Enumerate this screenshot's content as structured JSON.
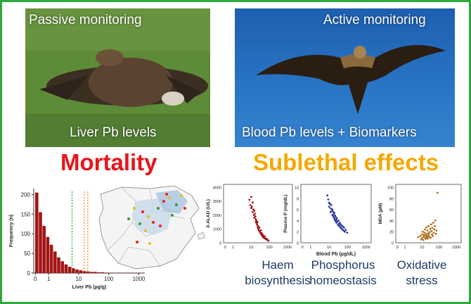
{
  "photos": {
    "passive": {
      "top_caption": "Passive monitoring",
      "bottom_caption": "Liver Pb levels"
    },
    "active": {
      "top_caption": "Active monitoring",
      "bottom_caption": "Blood Pb levels + Biomarkers"
    }
  },
  "headings": {
    "mortality": "Mortality",
    "sublethal": "Sublethal effects"
  },
  "outcomes": [
    {
      "line1": "Haem",
      "line2": "biosynthesis"
    },
    {
      "line1": "Phosphorus",
      "line2": "homeostasis"
    },
    {
      "line1": "Oxidative",
      "line2": "stress"
    }
  ],
  "colors": {
    "frame": "#2eaa3c",
    "mortality": "#e8141b",
    "sublethal": "#f5a800",
    "bars": "#a31515",
    "label_text": "#1f3a66"
  },
  "chart_data": [
    {
      "type": "bar",
      "xlabel": "Liver Pb (µg/g)",
      "ylabel": "Frequency (n)",
      "xscale": "log",
      "xticks": [
        "0",
        "1",
        "10",
        "100",
        "1000"
      ],
      "yticks": [
        "0",
        "50",
        "100",
        "150",
        "200"
      ],
      "ylim": [
        0,
        215
      ],
      "values": [
        205,
        155,
        120,
        92,
        72,
        55,
        40,
        30,
        22,
        16,
        12,
        9,
        7,
        5,
        4,
        3,
        3,
        2,
        2,
        1,
        1,
        1,
        1,
        0,
        1,
        0,
        1,
        0,
        0,
        1
      ],
      "thresholds": [
        {
          "value": 6,
          "color": "#2ca02c"
        },
        {
          "value": 15,
          "color": "#ff7f0e"
        },
        {
          "value": 20,
          "color": "#ff7f0e"
        }
      ]
    },
    {
      "type": "scatter",
      "ylabel": "δ-ALAD (U/L)",
      "xscale": "log",
      "xticks": [
        "0",
        "1",
        "10",
        "100",
        "1000"
      ],
      "yticks": [
        "0",
        "1000",
        "2000",
        "3000",
        "4000"
      ],
      "color": "#a31518",
      "x": [
        8,
        9,
        10,
        10,
        11,
        12,
        12,
        13,
        14,
        15,
        15,
        16,
        17,
        18,
        18,
        19,
        20,
        21,
        22,
        23,
        24,
        25,
        26,
        28,
        30,
        32,
        34,
        36,
        38,
        40,
        42,
        45,
        48,
        52,
        56,
        60,
        65,
        70,
        80,
        90
      ],
      "y": [
        3100,
        2700,
        3300,
        2500,
        2600,
        2900,
        2200,
        2400,
        2000,
        2300,
        1800,
        2100,
        1900,
        1700,
        1500,
        1600,
        1400,
        1300,
        1500,
        1100,
        1200,
        1000,
        900,
        1100,
        800,
        700,
        900,
        600,
        700,
        500,
        600,
        400,
        500,
        350,
        450,
        300,
        250,
        300,
        200,
        150
      ]
    },
    {
      "type": "scatter",
      "ylabel": "Plasma P (mg/dL)",
      "xlabel": "Blood Pb (µg/dL)",
      "xscale": "log",
      "xticks": [
        "0",
        "1",
        "10",
        "100",
        "1000"
      ],
      "yticks": [
        "0",
        "2",
        "4",
        "6",
        "8",
        "10"
      ],
      "color": "#2b3a9a",
      "x": [
        8,
        9,
        10,
        10,
        11,
        12,
        12,
        13,
        14,
        15,
        15,
        16,
        17,
        18,
        18,
        19,
        20,
        21,
        22,
        23,
        24,
        25,
        26,
        28,
        30,
        32,
        34,
        36,
        38,
        40,
        42,
        45,
        48,
        52,
        56,
        60,
        65,
        70,
        80,
        95
      ],
      "y": [
        8.5,
        7.8,
        7.2,
        6.5,
        7.0,
        6.2,
        5.5,
        6.8,
        5.8,
        6.0,
        5.0,
        5.6,
        4.8,
        5.2,
        4.5,
        5.4,
        4.2,
        4.9,
        3.9,
        4.6,
        4.1,
        3.6,
        4.4,
        3.8,
        3.2,
        4.0,
        3.4,
        3.0,
        3.6,
        2.8,
        3.3,
        2.6,
        3.1,
        2.4,
        2.9,
        2.2,
        2.7,
        2.0,
        2.3,
        1.8
      ]
    },
    {
      "type": "scatter",
      "ylabel": "MDA (µM)",
      "xscale": "log",
      "xticks": [
        "0",
        "1",
        "10",
        "100",
        "1000"
      ],
      "yticks": [
        "0",
        "20",
        "40",
        "60",
        "80",
        "100"
      ],
      "color": "#b06a1a",
      "x": [
        6,
        8,
        9,
        10,
        10,
        11,
        12,
        12,
        13,
        14,
        15,
        15,
        16,
        17,
        18,
        18,
        19,
        20,
        21,
        22,
        23,
        24,
        25,
        26,
        28,
        30,
        32,
        34,
        36,
        38,
        40,
        42,
        45,
        48,
        52,
        56,
        60,
        65,
        70,
        80
      ],
      "y": [
        10,
        12,
        6,
        15,
        8,
        20,
        11,
        5,
        14,
        18,
        9,
        24,
        13,
        7,
        16,
        28,
        10,
        12,
        22,
        8,
        17,
        30,
        14,
        11,
        19,
        25,
        9,
        33,
        21,
        15,
        27,
        12,
        36,
        18,
        24,
        30,
        40,
        16,
        22,
        90
      ]
    }
  ]
}
